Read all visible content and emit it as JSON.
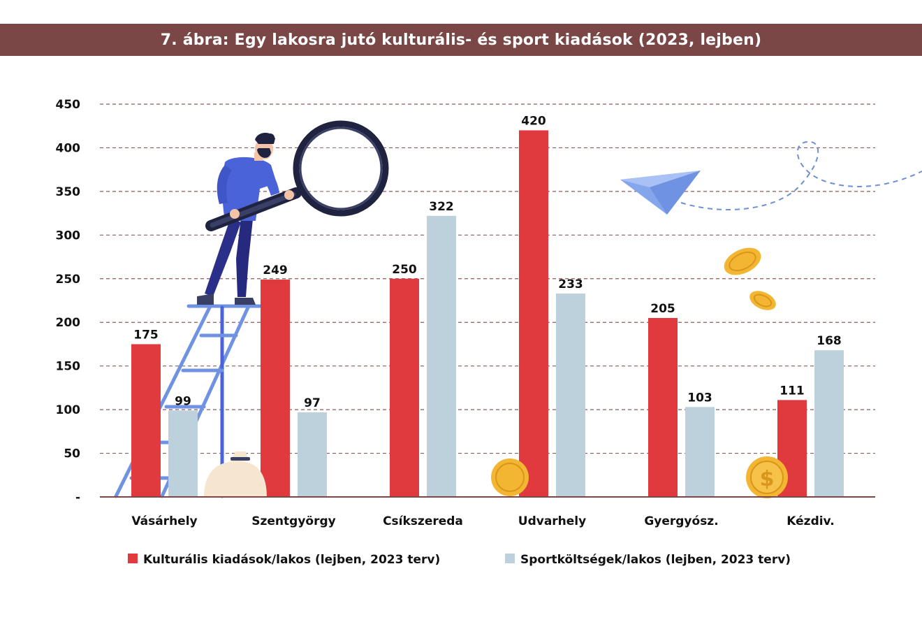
{
  "colors": {
    "title_bg": "#7A4646",
    "cultural": "#E03A3E",
    "sport": "#BCD1DC",
    "gridline": "#8C5A5A",
    "axis": "#7A4646"
  },
  "illustration_icons": [
    "person-with-magnifier-icon",
    "ladder-icon",
    "money-bag-icon",
    "paper-plane-icon",
    "coin-icon",
    "dollar-coin-icon"
  ],
  "chart_data": {
    "type": "bar",
    "title": "7. ábra: Egy lakosra jutó kulturális- és sport kiadások (2023, lejben)",
    "xlabel": "",
    "ylabel": "",
    "categories": [
      "Vásárhely",
      "Szentgyörgy",
      "Csíkszereda",
      "Udvarhely",
      "Gyergyósz.",
      "Kézdiv."
    ],
    "series": [
      {
        "name": "Kulturális kiadások/lakos (lejben, 2023 terv)",
        "values": [
          175,
          249,
          250,
          420,
          205,
          111
        ]
      },
      {
        "name": "Sportköltségek/lakos (lejben, 2023 terv)",
        "values": [
          99,
          97,
          322,
          233,
          103,
          168
        ]
      }
    ],
    "ylim": [
      0,
      450
    ],
    "yticks": [
      0,
      50,
      100,
      150,
      200,
      250,
      300,
      350,
      400,
      450
    ],
    "ytick_labels": [
      "-",
      "50",
      "100",
      "150",
      "200",
      "250",
      "300",
      "350",
      "400",
      "450"
    ],
    "grid": true,
    "legend_position": "bottom"
  }
}
